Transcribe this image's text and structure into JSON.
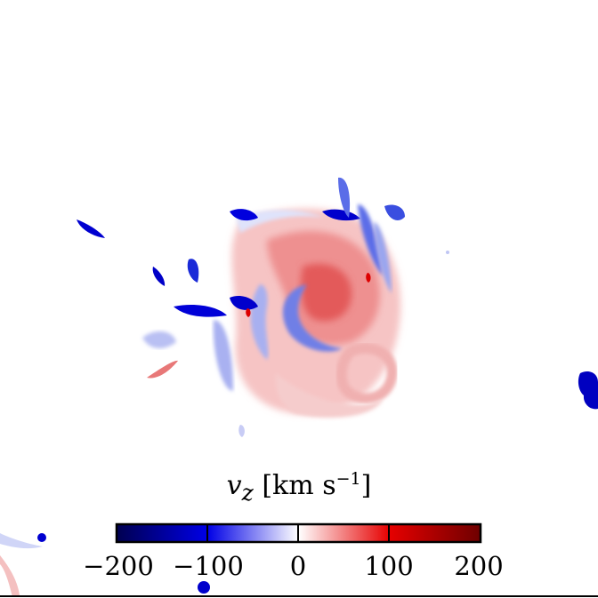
{
  "colorbar": {
    "symbol": "v",
    "subscript": "z",
    "unit_open": "[km s",
    "unit_exp": "−1",
    "unit_close": "]",
    "vmin": -200,
    "vmax": 200,
    "ticks": [
      "−200",
      "−100",
      "0",
      "100",
      "200"
    ],
    "colors": [
      "#00004f",
      "#0000e0",
      "#ffffff",
      "#e00000",
      "#700000"
    ]
  }
}
